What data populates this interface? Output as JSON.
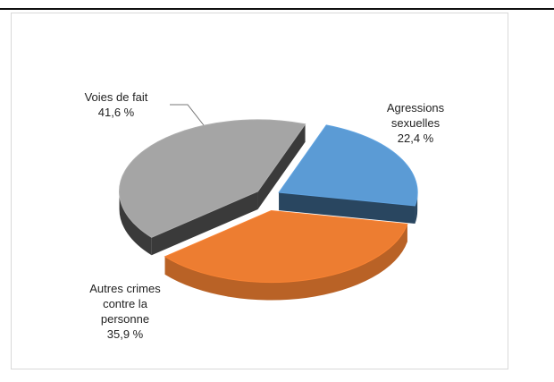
{
  "chart_data": {
    "type": "pie",
    "categories": [
      "Agressions sexuelles",
      "Autres crimes contre la personne",
      "Voies de fait"
    ],
    "values": [
      22.4,
      35.9,
      41.6
    ],
    "value_labels": [
      "22,4 %",
      "35,9 %",
      "41,6 %"
    ],
    "colors": [
      "#5b9bd5",
      "#ed7d31",
      "#a5a5a5"
    ]
  }
}
